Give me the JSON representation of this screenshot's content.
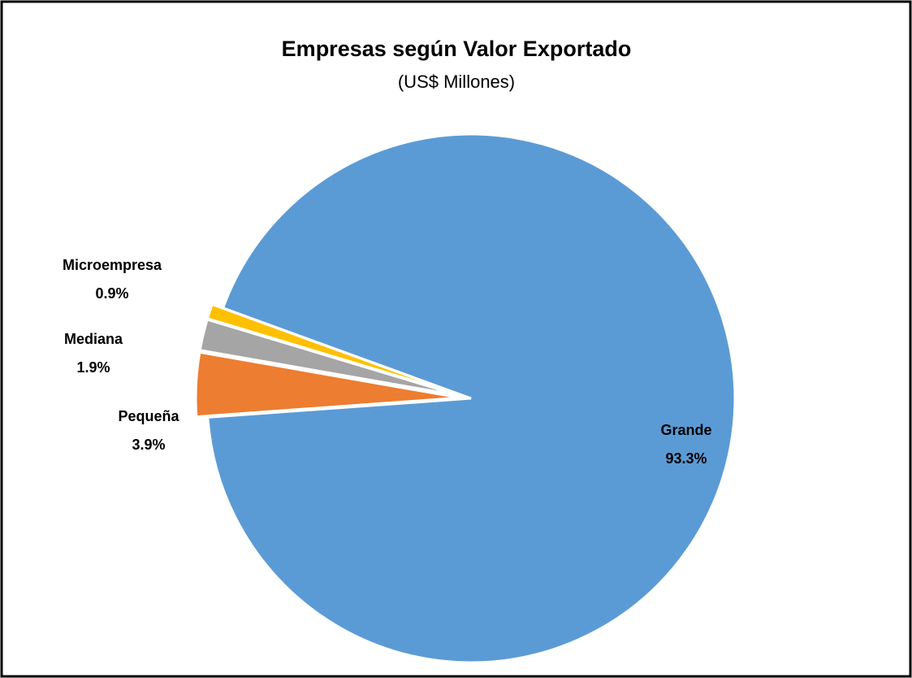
{
  "chart_data": {
    "type": "pie",
    "title": "Empresas según Valor Exportado",
    "subtitle": "(US$ Millones)",
    "categories": [
      "Grande",
      "Pequeña",
      "Mediana",
      "Microempresa"
    ],
    "values": [
      93.3,
      3.9,
      1.9,
      0.9
    ],
    "value_labels": [
      "93.3%",
      "3.9%",
      "1.9%",
      "0.9%"
    ],
    "colors": [
      "#5b9bd5",
      "#ed7d31",
      "#a5a5a5",
      "#ffc000"
    ]
  }
}
